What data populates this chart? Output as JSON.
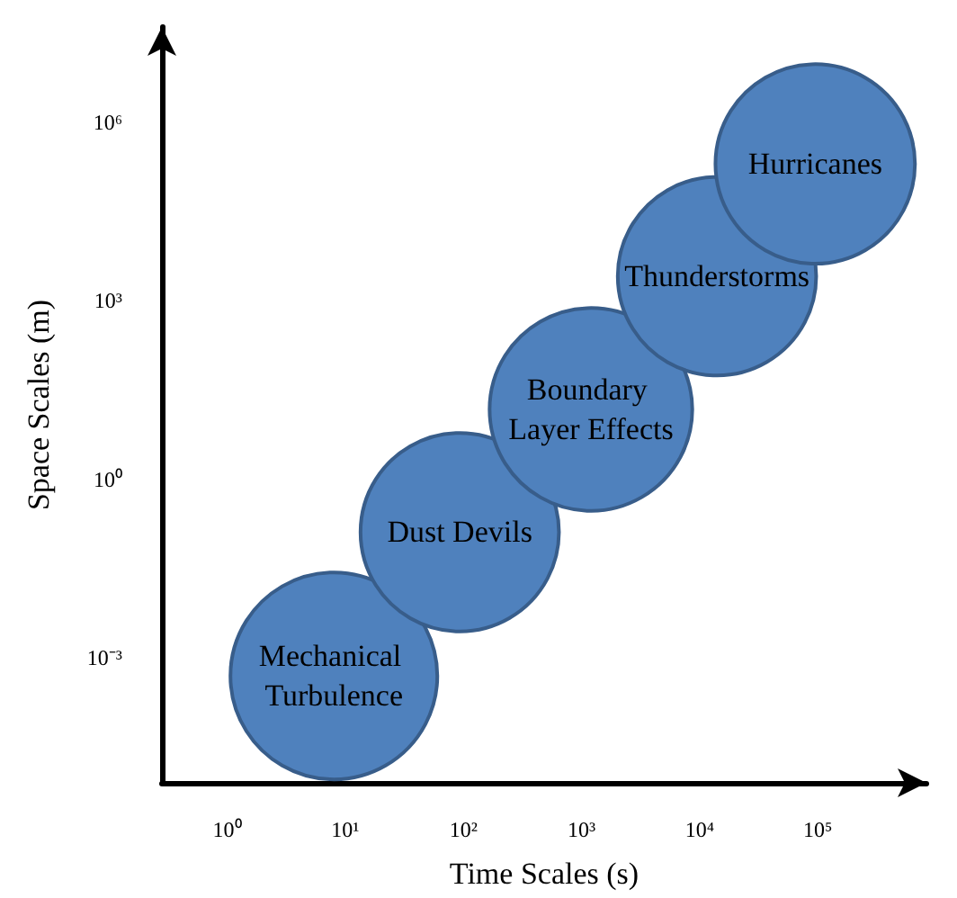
{
  "chart_data": {
    "type": "bubble",
    "xlabel": "Time Scales (s)",
    "ylabel": "Space Scales (m)",
    "log": "xy",
    "grid": false,
    "legend": false,
    "xlim": [
      0.28,
      830000
    ],
    "ylim": [
      8e-06,
      40000000
    ],
    "xticks": [
      {
        "value": 1,
        "label": "10⁰"
      },
      {
        "value": 10,
        "label": "10¹"
      },
      {
        "value": 100,
        "label": "10²"
      },
      {
        "value": 1000,
        "label": "10³"
      },
      {
        "value": 10000,
        "label": "10⁴"
      },
      {
        "value": 100000,
        "label": "10⁵"
      }
    ],
    "yticks": [
      {
        "value": 0.001,
        "label": "10⁻³"
      },
      {
        "value": 1,
        "label": "10⁰"
      },
      {
        "value": 1000,
        "label": "10³"
      },
      {
        "value": 1000000,
        "label": "10⁶"
      }
    ],
    "series": [
      {
        "name": "Mechanical Turbulence",
        "color": "#4f81bd",
        "x": [
          8
        ],
        "values": [
          0.0005
        ],
        "sizes": [
          1
        ]
      },
      {
        "name": "Dust Devils",
        "color": "#4f81bd",
        "x": [
          93
        ],
        "values": [
          0.13
        ],
        "sizes": [
          0.92
        ]
      },
      {
        "name": "Boundary Layer Effects",
        "color": "#4f81bd",
        "x": [
          1200
        ],
        "values": [
          15
        ],
        "sizes": [
          0.96
        ]
      },
      {
        "name": "Thunderstorms",
        "color": "#4f81bd",
        "x": [
          14000
        ],
        "values": [
          2600
        ],
        "sizes": [
          0.92
        ]
      },
      {
        "name": "Hurricanes",
        "color": "#4f81bd",
        "x": [
          95000
        ],
        "values": [
          200000
        ],
        "sizes": [
          0.93
        ]
      }
    ]
  }
}
